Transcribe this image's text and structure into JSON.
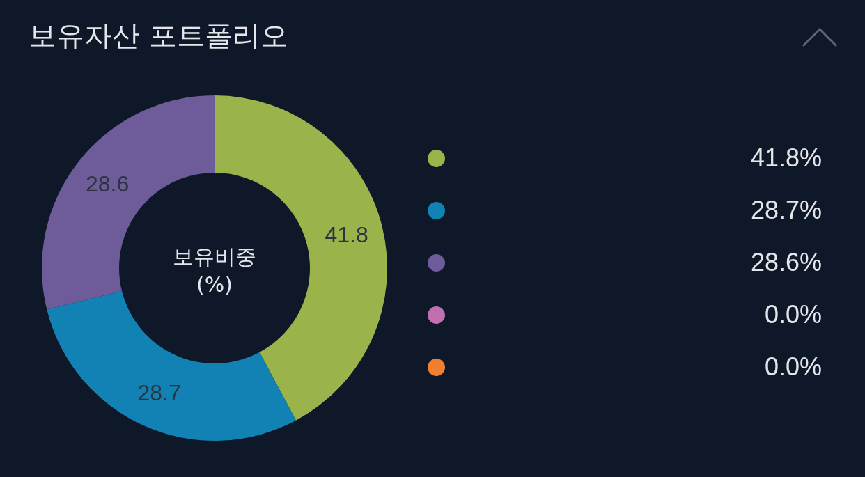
{
  "chart_data": {
    "type": "donut",
    "title": "보유자산 포트폴리오",
    "annotations": [
      "보유비중\n(%)",
      "41.8%",
      "28.7%",
      "28.6%",
      "0.0%",
      "0.0%"
    ],
    "categories": [
      null,
      null,
      null,
      null,
      null
    ],
    "values": [
      41.8,
      28.7,
      28.6,
      0,
      0
    ],
    "colors": [
      "#9ab34a",
      "#1282b4",
      "#6e5c9a",
      "#c070b0",
      "#f08030"
    ],
    "data_labels": true
  }
}
